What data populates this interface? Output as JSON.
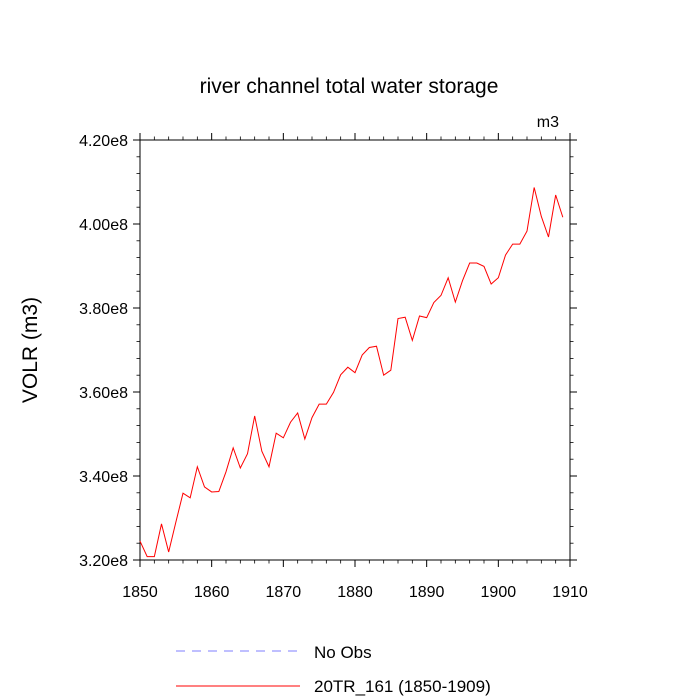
{
  "chart_data": {
    "type": "line",
    "title": "river channel total water storage",
    "units_label": "m3",
    "xlabel": "",
    "ylabel": "VOLR  (m3)",
    "xlim": [
      1850,
      1910
    ],
    "ylim": [
      320000000,
      420000000
    ],
    "x_ticks": [
      1850,
      1860,
      1870,
      1880,
      1890,
      1900,
      1910
    ],
    "x_tick_labels": [
      "1850",
      "1860",
      "1870",
      "1880",
      "1890",
      "1900",
      "1910"
    ],
    "y_ticks": [
      320000000,
      340000000,
      360000000,
      380000000,
      400000000,
      420000000
    ],
    "y_tick_labels": [
      "3.20e8",
      "3.40e8",
      "3.60e8",
      "3.80e8",
      "4.00e8",
      "4.20e8"
    ],
    "grid": false,
    "legend_position": "bottom",
    "series": [
      {
        "name": "No Obs",
        "color": "#7f7fff",
        "style": "dashed",
        "x": [],
        "values": []
      },
      {
        "name": "20TR_161 (1850-1909)",
        "color": "#ff0000",
        "style": "solid",
        "x": [
          1850,
          1851,
          1852,
          1853,
          1854,
          1855,
          1856,
          1857,
          1858,
          1859,
          1860,
          1861,
          1862,
          1863,
          1864,
          1865,
          1866,
          1867,
          1868,
          1869,
          1870,
          1871,
          1872,
          1873,
          1874,
          1875,
          1876,
          1877,
          1878,
          1879,
          1880,
          1881,
          1882,
          1883,
          1884,
          1885,
          1886,
          1887,
          1888,
          1889,
          1890,
          1891,
          1892,
          1893,
          1894,
          1895,
          1896,
          1897,
          1898,
          1899,
          1900,
          1901,
          1902,
          1903,
          1904,
          1905,
          1906,
          1907,
          1908,
          1909
        ],
        "values": [
          324500000,
          320800000,
          320800000,
          328600000,
          321900000,
          329000000,
          335900000,
          334800000,
          342200000,
          337400000,
          336200000,
          336300000,
          341000000,
          346700000,
          341900000,
          345300000,
          354300000,
          345900000,
          342200000,
          350200000,
          349100000,
          352800000,
          355000000,
          348800000,
          353900000,
          357100000,
          357100000,
          359900000,
          364100000,
          365900000,
          364600000,
          368800000,
          370600000,
          370900000,
          364000000,
          365200000,
          377500000,
          377800000,
          372300000,
          378100000,
          377700000,
          381300000,
          383000000,
          387200000,
          381400000,
          386500000,
          390700000,
          390700000,
          389900000,
          385700000,
          387200000,
          392600000,
          395200000,
          395200000,
          398300000,
          408700000,
          401800000,
          396900000,
          406900000,
          401600000
        ]
      }
    ]
  }
}
